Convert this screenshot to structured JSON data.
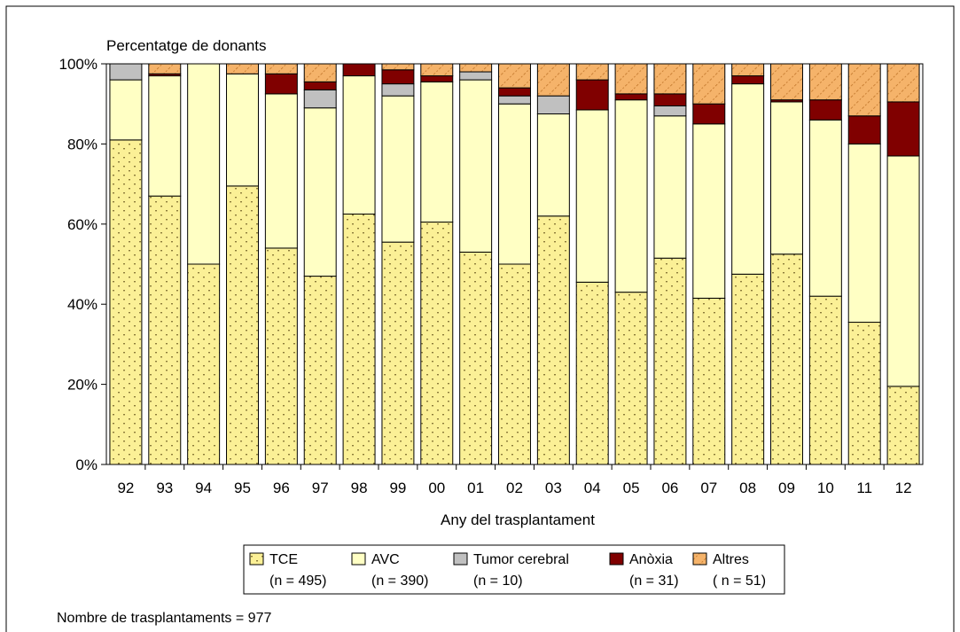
{
  "chart_data": {
    "type": "bar",
    "stacked": true,
    "title": "",
    "ylabel": "Percentatge de donants",
    "xlabel": "Any del trasplantament",
    "ylim": [
      0,
      100
    ],
    "y_ticks": [
      "0%",
      "20%",
      "40%",
      "60%",
      "80%",
      "100%"
    ],
    "categories": [
      "92",
      "93",
      "94",
      "95",
      "96",
      "97",
      "98",
      "99",
      "00",
      "01",
      "02",
      "03",
      "04",
      "05",
      "06",
      "07",
      "08",
      "09",
      "10",
      "11",
      "12"
    ],
    "series": [
      {
        "name": "TCE",
        "n_label": "(n = 495)",
        "color": "#fbf096",
        "pattern": "dots",
        "values": [
          81,
          67,
          50,
          69.5,
          54,
          47,
          62.5,
          55.5,
          60.5,
          53,
          50,
          62,
          45.5,
          43,
          51.5,
          41.5,
          47.5,
          52.5,
          42,
          35.5,
          19.5
        ]
      },
      {
        "name": "AVC",
        "n_label": "(n = 390)",
        "color": "#ffffc4",
        "pattern": "none",
        "values": [
          15,
          30,
          50,
          28,
          38.5,
          42,
          34.5,
          36.5,
          35,
          43,
          40,
          25.5,
          43,
          48,
          35.5,
          43.5,
          47.5,
          38,
          44,
          44.5,
          57.5
        ]
      },
      {
        "name": "Tumor cerebral",
        "n_label": "(n = 10)",
        "color": "#c0c0c0",
        "pattern": "none",
        "values": [
          4,
          0,
          0,
          0,
          0,
          4.5,
          0,
          3,
          0,
          2,
          2,
          4.5,
          0,
          0,
          2.5,
          0,
          0,
          0,
          0,
          0,
          0
        ]
      },
      {
        "name": "Anòxia",
        "n_label": "(n = 31)",
        "color": "#800000",
        "pattern": "none",
        "values": [
          0,
          0.5,
          0,
          0,
          5,
          2,
          3,
          3.5,
          1.5,
          0,
          2,
          0,
          7.5,
          1.5,
          3,
          5,
          2,
          0.5,
          5,
          7,
          13.5
        ]
      },
      {
        "name": "Altres",
        "n_label": "( n = 51)",
        "color": "#f5b36a",
        "pattern": "hatch",
        "values": [
          0,
          2.5,
          0,
          2.5,
          2.5,
          4.5,
          0,
          1.5,
          3,
          2,
          6,
          8,
          4,
          7.5,
          7.5,
          10,
          3,
          9,
          9,
          13,
          9.5
        ]
      }
    ],
    "grid": false,
    "legend_position": "bottom"
  },
  "footer": {
    "note": "Nombre de trasplantaments = 977"
  }
}
